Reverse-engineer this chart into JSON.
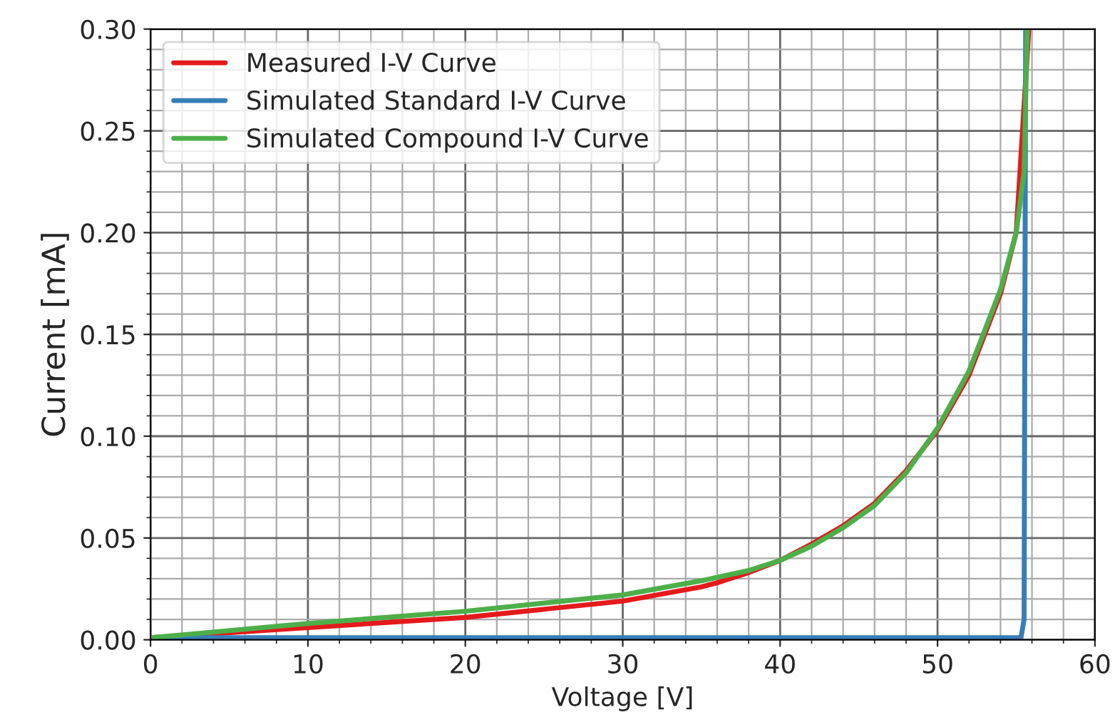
{
  "chart_data": {
    "type": "line",
    "xlabel": "Voltage [V]",
    "ylabel": "Current [mA]",
    "xlim": [
      0,
      60
    ],
    "ylim": [
      0,
      0.3
    ],
    "xticks": [
      0,
      10,
      20,
      30,
      40,
      50,
      60
    ],
    "yticks": [
      {
        "value": 0,
        "label": "0.00"
      },
      {
        "value": 0.05,
        "label": "0.05"
      },
      {
        "value": 0.1,
        "label": "0.10"
      },
      {
        "value": 0.15,
        "label": "0.15"
      },
      {
        "value": 0.2,
        "label": "0.20"
      },
      {
        "value": 0.25,
        "label": "0.25"
      },
      {
        "value": 0.3,
        "label": "0.30"
      }
    ],
    "grid": true,
    "legend": "top left",
    "marker": "none",
    "line_style": "solid",
    "series": [
      {
        "name": "Measured I-V Curve",
        "color": "#e41a1c",
        "x": [
          0,
          10,
          20,
          30,
          35,
          36,
          38,
          40,
          42,
          44,
          46,
          48,
          50,
          52,
          54,
          55,
          55.8
        ],
        "values": [
          0.001,
          0.006,
          0.011,
          0.019,
          0.026,
          0.028,
          0.033,
          0.039,
          0.047,
          0.056,
          0.067,
          0.083,
          0.103,
          0.13,
          0.17,
          0.2,
          0.3
        ]
      },
      {
        "name": "Simulated Standard I-V Curve",
        "color": "#377eb8",
        "x": [
          0,
          55.3,
          55.5,
          55.6
        ],
        "values": [
          0.001,
          0.001,
          0.01,
          0.3
        ]
      },
      {
        "name": "Simulated Compound I-V Curve",
        "color": "#4daf4a",
        "x": [
          0,
          10,
          20,
          30,
          35,
          38,
          40,
          42,
          44,
          46,
          48,
          50,
          52,
          54,
          55,
          55.5,
          55.7
        ],
        "values": [
          0.001,
          0.008,
          0.014,
          0.022,
          0.029,
          0.034,
          0.039,
          0.046,
          0.055,
          0.066,
          0.082,
          0.104,
          0.132,
          0.172,
          0.2,
          0.23,
          0.3
        ]
      }
    ]
  }
}
